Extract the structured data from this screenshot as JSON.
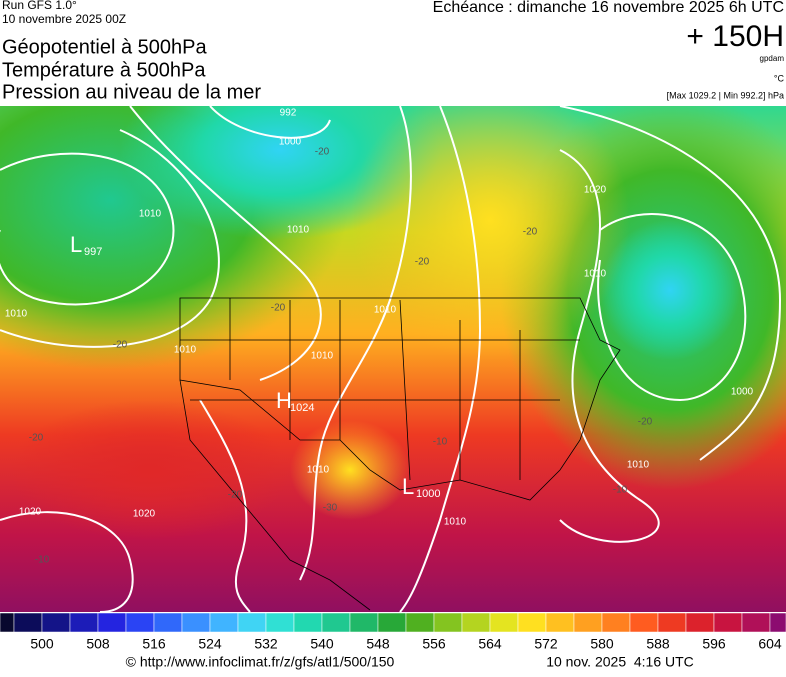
{
  "header": {
    "run": "Run GFS 1.0°",
    "date": "10 novembre 2025 00Z",
    "titles": [
      "Géopotentiel à 500hPa",
      "Température à 500hPa",
      "Pression au niveau de la mer"
    ],
    "forecast": "Echéance : dimanche 16 novembre 2025 6h UTC",
    "lead": "+ 150H",
    "unit_geo": "gpdam",
    "unit_temp": "°C",
    "pressure_range": "[Max 1029.2 | Min 992.2] hPa"
  },
  "map": {
    "centers": [
      {
        "letter": "L",
        "value": 997
      },
      {
        "letter": "H",
        "value": 1024
      },
      {
        "letter": "L",
        "value": 1000
      }
    ],
    "isobars": [
      992,
      1000,
      1010,
      1010,
      1010,
      1010,
      1010,
      1020,
      1010,
      1020,
      1010,
      1000,
      1010,
      1020,
      1010,
      1010
    ],
    "isotherms": [
      -20,
      -20,
      -20,
      -20,
      -20,
      -10,
      -20,
      -20,
      -30,
      -10,
      -10,
      -20
    ]
  },
  "colorbar": {
    "ticks": [
      500,
      508,
      516,
      524,
      532,
      540,
      548,
      556,
      564,
      572,
      580,
      588,
      596,
      604
    ],
    "colors": [
      "#08082e",
      "#0c0c5a",
      "#141488",
      "#1c1cb8",
      "#2424e0",
      "#2a44f4",
      "#3068fa",
      "#3a90ff",
      "#40b4ff",
      "#40d4f4",
      "#30e0d4",
      "#22d8b0",
      "#20c890",
      "#20b868",
      "#28a838",
      "#50b020",
      "#84c420",
      "#b4d420",
      "#e4e420",
      "#ffe020",
      "#ffc020",
      "#ffa020",
      "#ff8020",
      "#ff5c20",
      "#ee3a22",
      "#dc222c",
      "#c81440",
      "#b01058",
      "#8c0c70",
      "#7c1090",
      "#8c40a8",
      "#a474c0",
      "#c4a4d8",
      "#dcd0e8"
    ]
  },
  "footer": {
    "url": "© http://www.infoclimat.fr/z/gfs/atl1/500/150",
    "stamp": "10 nov. 2025  4:16 UTC"
  }
}
